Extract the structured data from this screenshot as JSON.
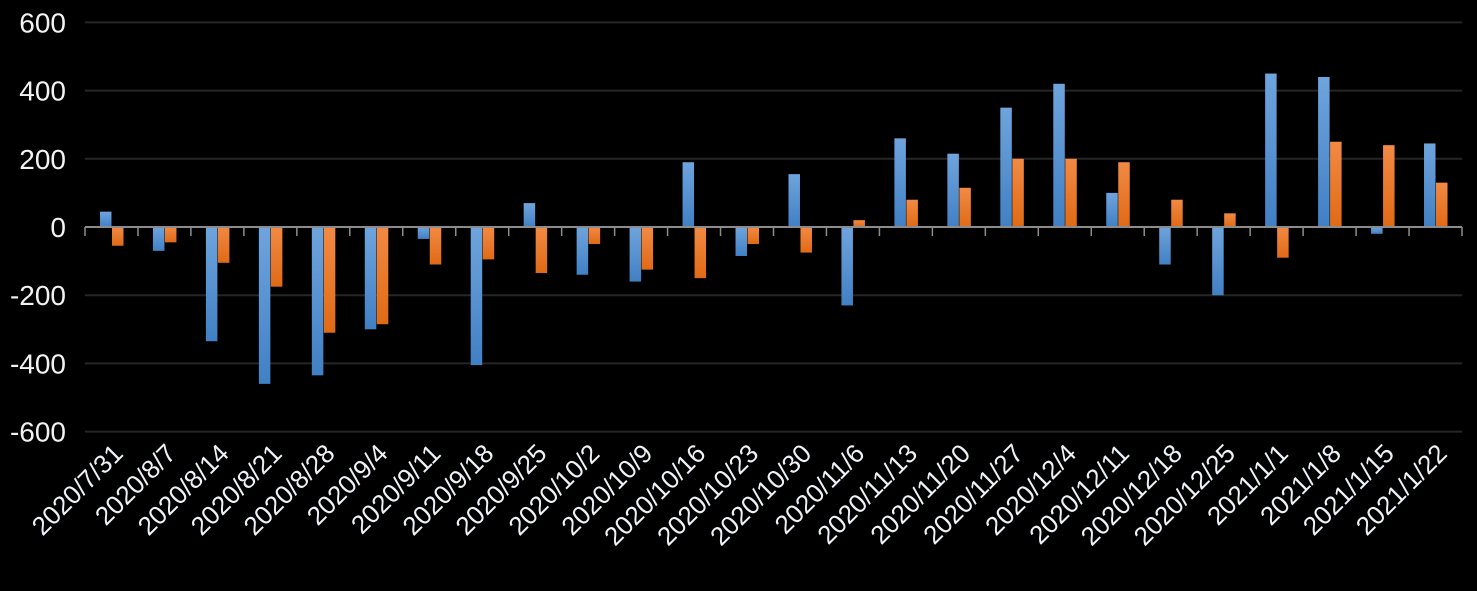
{
  "chart_data": {
    "type": "bar",
    "title": "",
    "xlabel": "",
    "ylabel": "",
    "legend": "none",
    "grid": true,
    "background_color": "#000000",
    "gridline_color": "#262626",
    "axis_line_color": "#8c8c8c",
    "tick_color": "#8c8c8c",
    "label_color": "#f2f2f2",
    "categories": [
      "2020/7/31",
      "2020/8/7",
      "2020/8/14",
      "2020/8/21",
      "2020/8/28",
      "2020/9/4",
      "2020/9/11",
      "2020/9/18",
      "2020/9/25",
      "2020/10/2",
      "2020/10/9",
      "2020/10/16",
      "2020/10/23",
      "2020/10/30",
      "2020/11/6",
      "2020/11/13",
      "2020/11/20",
      "2020/11/27",
      "2020/12/4",
      "2020/12/11",
      "2020/12/18",
      "2020/12/25",
      "2021/1/1",
      "2021/1/8",
      "2021/1/15",
      "2021/1/22"
    ],
    "series": [
      {
        "name": "series-1-blue",
        "color_top": "#6fa4dd",
        "color_bottom": "#4180c4",
        "values": [
          45,
          -70,
          -335,
          -460,
          -435,
          -300,
          -35,
          -405,
          70,
          -140,
          -160,
          190,
          -85,
          155,
          -230,
          260,
          215,
          350,
          420,
          100,
          -110,
          -200,
          450,
          440,
          -20,
          245
        ]
      },
      {
        "name": "series-2-orange",
        "color_top": "#f28a44",
        "color_bottom": "#e06a16",
        "values": [
          -55,
          -45,
          -105,
          -175,
          -310,
          -285,
          -110,
          -95,
          -135,
          -50,
          -125,
          -150,
          -50,
          -75,
          20,
          80,
          115,
          200,
          200,
          190,
          80,
          40,
          -90,
          250,
          240,
          130
        ]
      }
    ],
    "y_axis": {
      "min": -600,
      "max": 600,
      "tick_step": 200,
      "tick_labels": [
        "600",
        "400",
        "200",
        "0",
        "-200",
        "-400",
        "-600"
      ]
    }
  }
}
